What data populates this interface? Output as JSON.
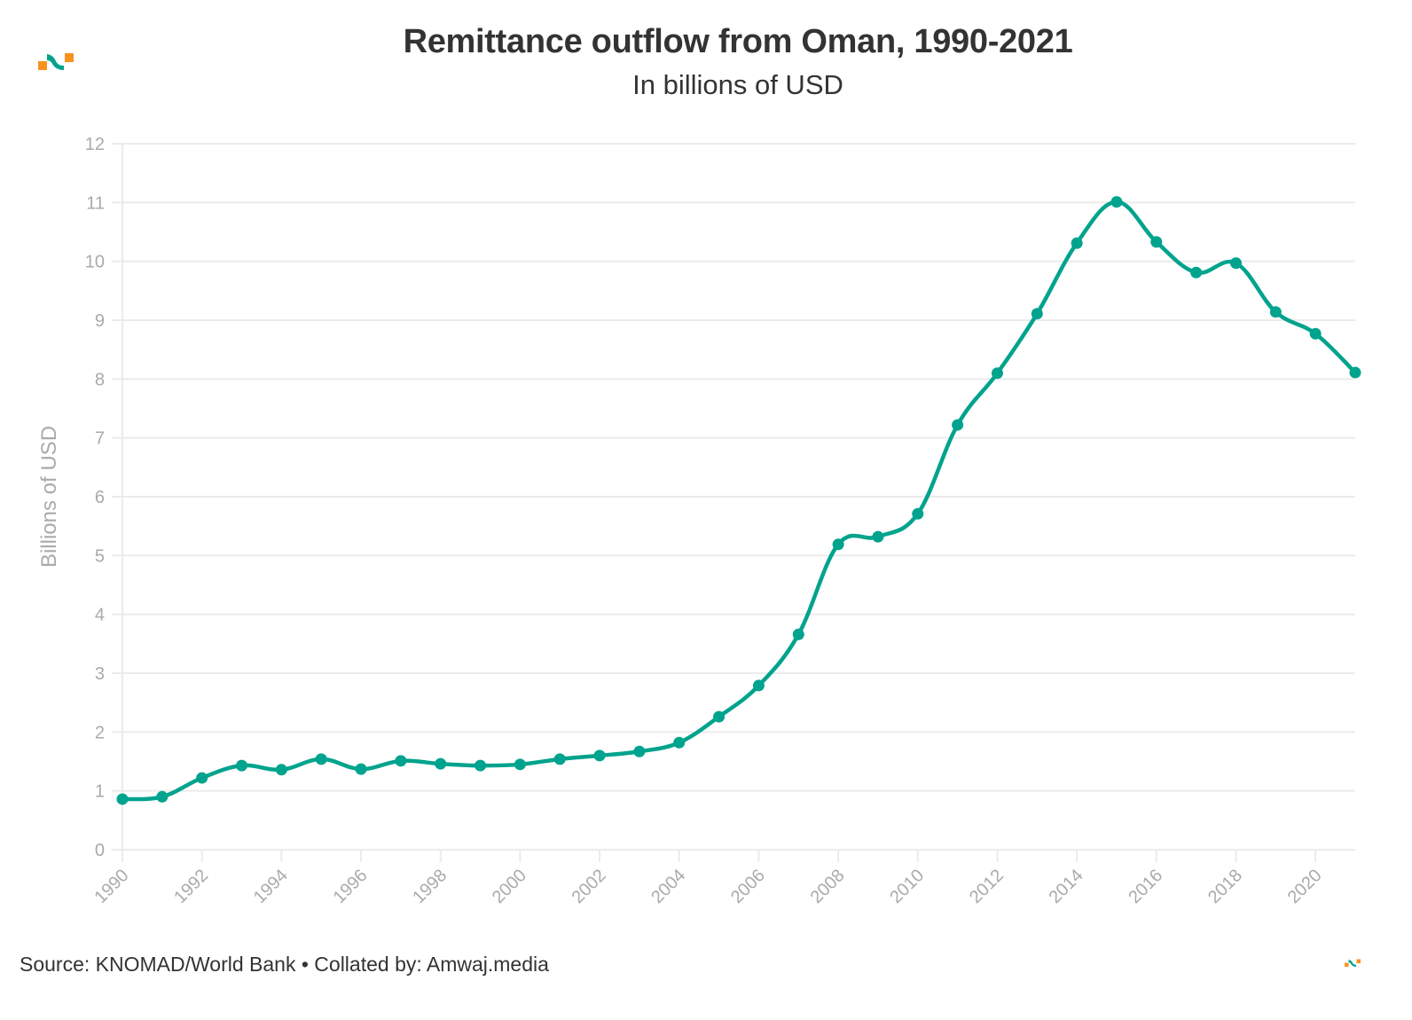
{
  "header": {
    "title": "Remittance outflow from Oman, 1990-2021",
    "subtitle": "In billions of USD"
  },
  "footer": {
    "source": "Source: KNOMAD/World Bank • Collated by: Amwaj.media"
  },
  "branding": {
    "logo_icon": "amwaj-logo-icon",
    "colors": {
      "orange": "#f7931e",
      "teal": "#00a38d"
    }
  },
  "chart_data": {
    "type": "line",
    "title": "Remittance outflow from Oman, 1990-2021",
    "subtitle": "In billions of USD",
    "xlabel": "",
    "ylabel": "Billions of USD",
    "x": [
      1990,
      1991,
      1992,
      1993,
      1994,
      1995,
      1996,
      1997,
      1998,
      1999,
      2000,
      2001,
      2002,
      2003,
      2004,
      2005,
      2006,
      2007,
      2008,
      2009,
      2010,
      2011,
      2012,
      2013,
      2014,
      2015,
      2016,
      2017,
      2018,
      2019,
      2020,
      2021
    ],
    "series": [
      {
        "name": "Remittance outflow",
        "color": "#00a38d",
        "values": [
          0.86,
          0.9,
          1.22,
          1.43,
          1.36,
          1.54,
          1.37,
          1.51,
          1.46,
          1.43,
          1.45,
          1.54,
          1.6,
          1.67,
          1.82,
          2.26,
          2.79,
          3.66,
          5.19,
          5.32,
          5.71,
          7.22,
          8.1,
          9.11,
          10.31,
          11.01,
          10.33,
          9.81,
          9.97,
          9.14,
          8.77,
          8.11
        ]
      }
    ],
    "xlim": [
      1990,
      2021
    ],
    "ylim": [
      0,
      12
    ],
    "y_ticks": [
      0,
      1,
      2,
      3,
      4,
      5,
      6,
      7,
      8,
      9,
      10,
      11,
      12
    ],
    "x_ticks": [
      1990,
      1992,
      1994,
      1996,
      1998,
      2000,
      2002,
      2004,
      2006,
      2008,
      2010,
      2012,
      2014,
      2016,
      2018,
      2020
    ],
    "grid": true,
    "legend": "none",
    "curve": "smooth",
    "markers": true
  }
}
